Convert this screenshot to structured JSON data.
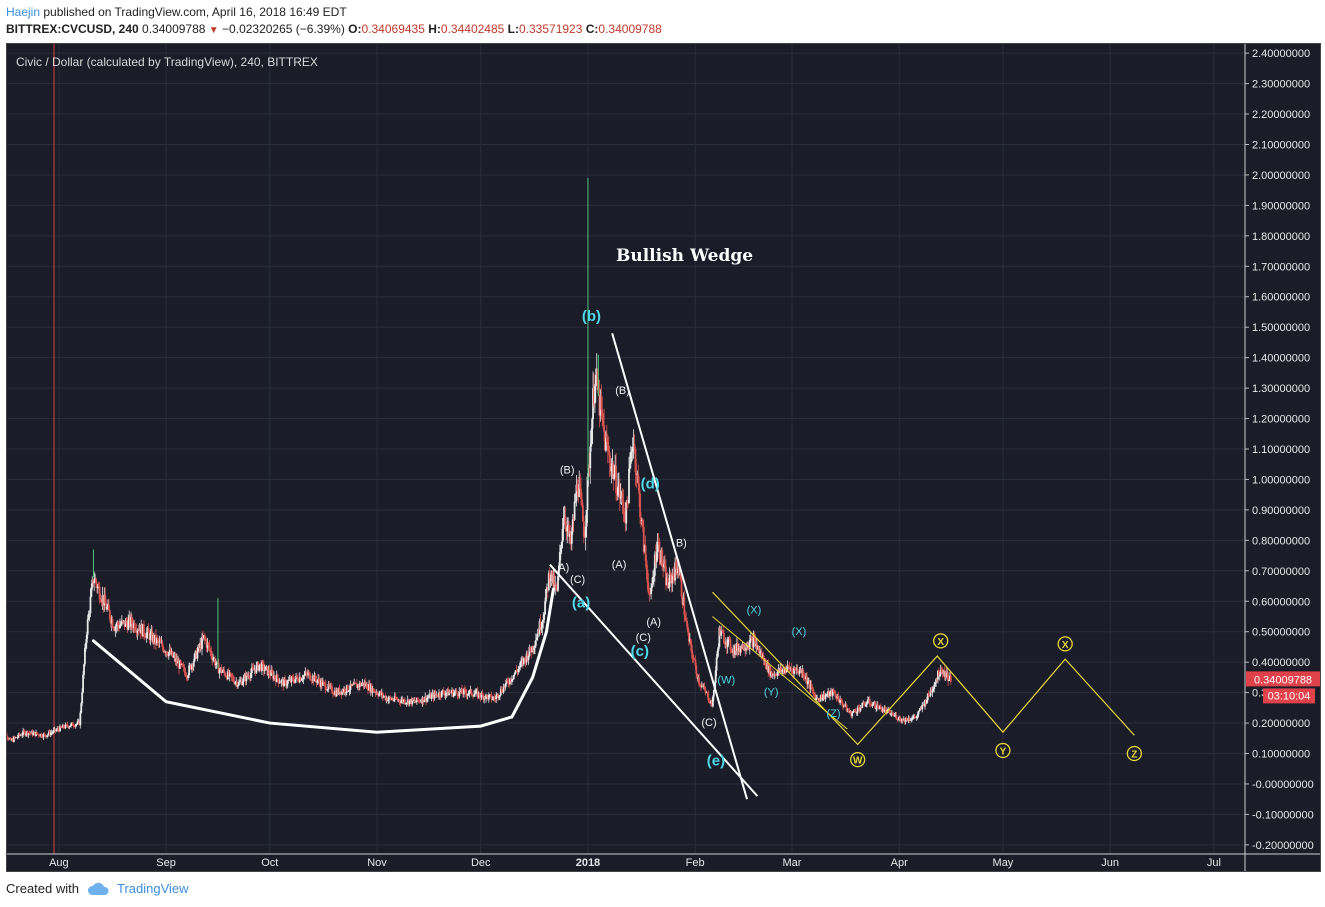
{
  "header": {
    "author": "Haejin",
    "published_text": "published on TradingView.com, April 16, 2018 16:49 EDT",
    "symbol": "BITTREX:CVCUSD, 240",
    "last": "0.34009788",
    "change": "−0.02320265 (−6.39%)",
    "o_label": "O:",
    "o_value": "0.34069435",
    "h_label": "H:",
    "h_value": "0.34402485",
    "l_label": "L:",
    "l_value": "0.33571923",
    "c_label": "C:",
    "c_value": "0.34009788"
  },
  "chart_title": "Civic / Dollar (calculated by TradingView), 240, BITTREX",
  "annotation_title": "Bullish Wedge",
  "price_badge": "0.34009788",
  "time_badge": "03:10:04",
  "footer": {
    "created_with": "Created with",
    "brand": "TradingView"
  },
  "colors": {
    "background": "#1a1c28",
    "grid": "#2a2d3a",
    "up_candle": "#e8e8e8",
    "down_candle": "#d9534f",
    "white_line": "#ffffff",
    "cyan_label": "#4fd8e8",
    "yellow": "#e8d83a",
    "badge_red": "#e0424b"
  },
  "chart_data": {
    "type": "candlestick",
    "yaxis_ticks": [
      2.4,
      2.3,
      2.2,
      2.1,
      2.0,
      1.9,
      1.8,
      1.7,
      1.6,
      1.5,
      1.4,
      1.3,
      1.2,
      1.1,
      1.0,
      0.9,
      0.8,
      0.7,
      0.6,
      0.5,
      0.4,
      0.3,
      0.2,
      0.1,
      0.0,
      -0.1,
      -0.2
    ],
    "yaxis_labels": [
      "2.40000000",
      "2.30000000",
      "2.20000000",
      "2.10000000",
      "2.00000000",
      "1.90000000",
      "1.80000000",
      "1.70000000",
      "1.60000000",
      "1.50000000",
      "1.40000000",
      "1.30000000",
      "1.20000000",
      "1.10000000",
      "1.00000000",
      "0.90000000",
      "0.80000000",
      "0.70000000",
      "0.60000000",
      "0.50000000",
      "0.40000000",
      "0.30000000",
      "0.20000000",
      "0.10000000",
      "-0.00000000",
      "-0.10000000",
      "-0.20000000"
    ],
    "ylim": [
      -0.23,
      2.43
    ],
    "xaxis_labels": [
      "Aug",
      "Sep",
      "Oct",
      "Nov",
      "Dec",
      "2018",
      "Feb",
      "Mar",
      "Apr",
      "May",
      "Jun",
      "Jul"
    ],
    "xaxis_dates": [
      "2017-08-01",
      "2017-09-01",
      "2017-10-01",
      "2017-11-01",
      "2017-12-01",
      "2018-01-01",
      "2018-02-01",
      "2018-03-01",
      "2018-04-01",
      "2018-05-01",
      "2018-06-01",
      "2018-07-01"
    ],
    "xlim": [
      "2017-07-17",
      "2018-07-10"
    ],
    "price_path": [
      [
        "2017-07-15",
        0.2
      ],
      [
        "2017-07-18",
        0.14
      ],
      [
        "2017-07-22",
        0.17
      ],
      [
        "2017-07-28",
        0.16
      ],
      [
        "2017-08-03",
        0.19
      ],
      [
        "2017-08-07",
        0.2
      ],
      [
        "2017-08-09",
        0.5
      ],
      [
        "2017-08-11",
        0.68
      ],
      [
        "2017-08-14",
        0.6
      ],
      [
        "2017-08-17",
        0.52
      ],
      [
        "2017-08-22",
        0.53
      ],
      [
        "2017-08-27",
        0.49
      ],
      [
        "2017-09-02",
        0.43
      ],
      [
        "2017-09-07",
        0.36
      ],
      [
        "2017-09-12",
        0.48
      ],
      [
        "2017-09-16",
        0.38
      ],
      [
        "2017-09-22",
        0.33
      ],
      [
        "2017-09-28",
        0.39
      ],
      [
        "2017-10-05",
        0.33
      ],
      [
        "2017-10-12",
        0.36
      ],
      [
        "2017-10-20",
        0.3
      ],
      [
        "2017-10-28",
        0.33
      ],
      [
        "2017-11-04",
        0.28
      ],
      [
        "2017-11-12",
        0.27
      ],
      [
        "2017-11-20",
        0.3
      ],
      [
        "2017-11-28",
        0.3
      ],
      [
        "2017-12-05",
        0.28
      ],
      [
        "2017-12-12",
        0.38
      ],
      [
        "2017-12-16",
        0.45
      ],
      [
        "2017-12-19",
        0.55
      ],
      [
        "2017-12-21",
        0.7
      ],
      [
        "2017-12-23",
        0.62
      ],
      [
        "2017-12-25",
        0.9
      ],
      [
        "2017-12-27",
        0.78
      ],
      [
        "2017-12-29",
        1.0
      ],
      [
        "2017-12-31",
        0.82
      ],
      [
        "2018-01-03",
        1.35
      ],
      [
        "2018-01-06",
        1.12
      ],
      [
        "2018-01-09",
        1.0
      ],
      [
        "2018-01-12",
        0.88
      ],
      [
        "2018-01-14",
        1.15
      ],
      [
        "2018-01-17",
        0.8
      ],
      [
        "2018-01-19",
        0.6
      ],
      [
        "2018-01-21",
        0.8
      ],
      [
        "2018-01-24",
        0.65
      ],
      [
        "2018-01-27",
        0.72
      ],
      [
        "2018-01-30",
        0.48
      ],
      [
        "2018-02-02",
        0.34
      ],
      [
        "2018-02-06",
        0.26
      ],
      [
        "2018-02-08",
        0.5
      ],
      [
        "2018-02-12",
        0.44
      ],
      [
        "2018-02-18",
        0.47
      ],
      [
        "2018-02-23",
        0.36
      ],
      [
        "2018-02-28",
        0.38
      ],
      [
        "2018-03-04",
        0.37
      ],
      [
        "2018-03-08",
        0.28
      ],
      [
        "2018-03-13",
        0.3
      ],
      [
        "2018-03-18",
        0.23
      ],
      [
        "2018-03-23",
        0.27
      ],
      [
        "2018-03-28",
        0.24
      ],
      [
        "2018-04-02",
        0.21
      ],
      [
        "2018-04-06",
        0.22
      ],
      [
        "2018-04-10",
        0.3
      ],
      [
        "2018-04-13",
        0.38
      ],
      [
        "2018-04-16",
        0.34
      ]
    ],
    "spikes": [
      {
        "date": "2018-01-01",
        "high": 1.99
      },
      {
        "date": "2018-01-04",
        "high": 1.41
      },
      {
        "date": "2017-08-11",
        "high": 0.77
      },
      {
        "date": "2017-09-16",
        "high": 0.61
      }
    ],
    "wedge_curve_points": [
      [
        "2017-08-11",
        0.47
      ],
      [
        "2017-09-01",
        0.27
      ],
      [
        "2017-10-01",
        0.2
      ],
      [
        "2017-11-01",
        0.17
      ],
      [
        "2017-12-01",
        0.19
      ],
      [
        "2017-12-10",
        0.22
      ],
      [
        "2017-12-16",
        0.35
      ],
      [
        "2017-12-20",
        0.5
      ],
      [
        "2017-12-22",
        0.64
      ]
    ],
    "trendlines": [
      {
        "from": [
          "2018-01-08",
          1.48
        ],
        "to": [
          "2018-02-16",
          -0.05
        ]
      },
      {
        "from": [
          "2017-12-21",
          0.72
        ],
        "to": [
          "2018-02-19",
          -0.04
        ]
      }
    ],
    "yellow_projection": [
      [
        "2018-02-06",
        0.63
      ],
      [
        "2018-03-20",
        0.13
      ],
      [
        "2018-04-12",
        0.42
      ],
      [
        "2018-05-01",
        0.17
      ],
      [
        "2018-05-19",
        0.41
      ],
      [
        "2018-06-08",
        0.16
      ]
    ],
    "labels": [
      {
        "text": "(b)",
        "date": "2018-01-02",
        "y": 1.52,
        "style": "cyan-bold"
      },
      {
        "text": "(d)",
        "date": "2018-01-19",
        "y": 0.97,
        "style": "cyan-bold"
      },
      {
        "text": "(a)",
        "date": "2017-12-30",
        "y": 0.58,
        "style": "cyan-bold"
      },
      {
        "text": "(c)",
        "date": "2018-01-16",
        "y": 0.42,
        "style": "cyan-bold"
      },
      {
        "text": "(e)",
        "date": "2018-02-07",
        "y": 0.06,
        "style": "cyan-bold"
      },
      {
        "text": "(B)",
        "date": "2017-12-26",
        "y": 1.02,
        "style": "white"
      },
      {
        "text": "(B)",
        "date": "2018-01-11",
        "y": 1.28,
        "style": "white"
      },
      {
        "text": "B)",
        "date": "2018-01-28",
        "y": 0.78,
        "style": "white"
      },
      {
        "text": "(A)",
        "date": "2018-01-10",
        "y": 0.71,
        "style": "white"
      },
      {
        "text": "A)",
        "date": "2017-12-25",
        "y": 0.7,
        "style": "white"
      },
      {
        "text": "(C)",
        "date": "2017-12-29",
        "y": 0.66,
        "style": "white"
      },
      {
        "text": "(A)",
        "date": "2018-01-20",
        "y": 0.52,
        "style": "white"
      },
      {
        "text": "(C)",
        "date": "2018-01-17",
        "y": 0.47,
        "style": "white"
      },
      {
        "text": "(C)",
        "date": "2018-02-05",
        "y": 0.19,
        "style": "white"
      },
      {
        "text": "(W)",
        "date": "2018-02-10",
        "y": 0.33,
        "style": "cyan"
      },
      {
        "text": "(X)",
        "date": "2018-02-18",
        "y": 0.56,
        "style": "cyan"
      },
      {
        "text": "(X)",
        "date": "2018-03-03",
        "y": 0.49,
        "style": "cyan"
      },
      {
        "text": "(Y)",
        "date": "2018-02-23",
        "y": 0.29,
        "style": "cyan"
      },
      {
        "text": "(Z)",
        "date": "2018-03-13",
        "y": 0.22,
        "style": "cyan"
      }
    ],
    "circle_labels": [
      {
        "text": "X",
        "date": "2018-04-13",
        "y": 0.47
      },
      {
        "text": "W",
        "date": "2018-03-20",
        "y": 0.08
      },
      {
        "text": "Y",
        "date": "2018-05-01",
        "y": 0.11
      },
      {
        "text": "X",
        "date": "2018-05-19",
        "y": 0.46
      },
      {
        "text": "Z",
        "date": "2018-06-08",
        "y": 0.1
      }
    ]
  }
}
